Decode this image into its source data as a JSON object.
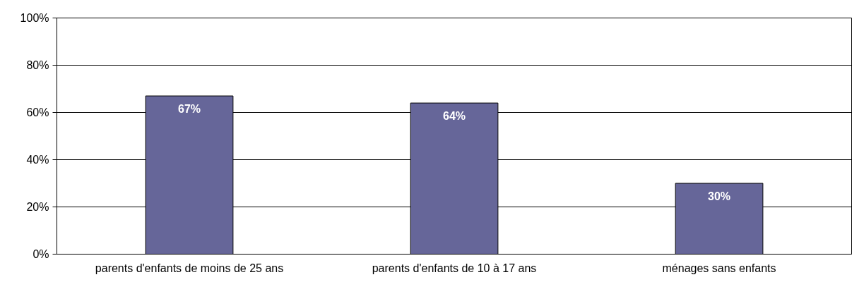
{
  "chart_data": {
    "type": "bar",
    "categories": [
      "parents d'enfants de moins de 25 ans",
      "parents d'enfants de 10 à 17 ans",
      "ménages sans enfants"
    ],
    "values": [
      67,
      64,
      30
    ],
    "color": "#666699",
    "value_labels": [
      "67%",
      "64%",
      "30%"
    ],
    "ylim": [
      0,
      100
    ],
    "yticks": [
      {
        "value": 0,
        "label": "0%"
      },
      {
        "value": 20,
        "label": "20%"
      },
      {
        "value": 40,
        "label": "40%"
      },
      {
        "value": 60,
        "label": "60%"
      },
      {
        "value": 80,
        "label": "80%"
      },
      {
        "value": 100,
        "label": "100%"
      }
    ],
    "grid": "y"
  }
}
